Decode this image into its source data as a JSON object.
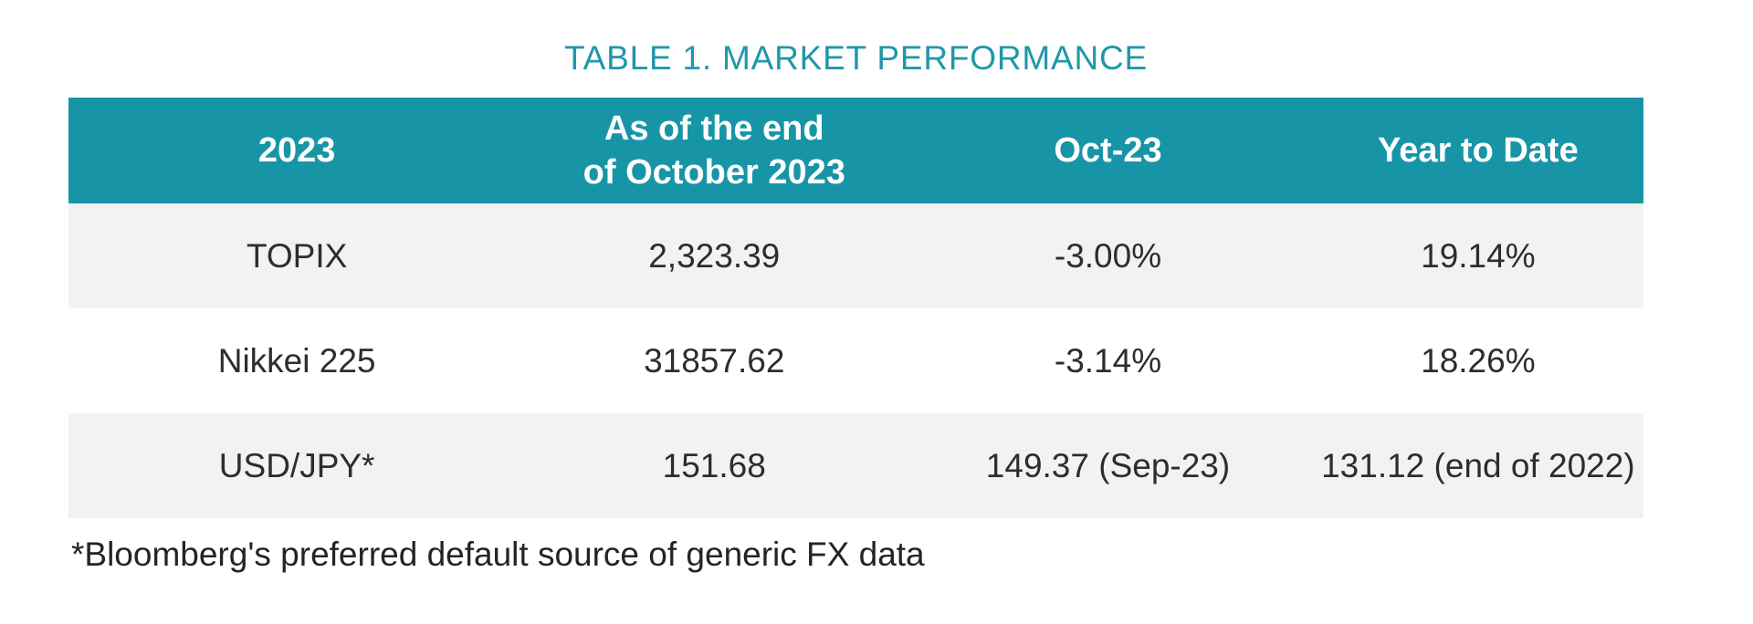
{
  "title": "TABLE 1. MARKET PERFORMANCE",
  "colors": {
    "header_bg": "#1795A7",
    "title_text": "#2097A9",
    "row_alt_bg": "#F2F2F1",
    "body_text": "#2D2C30"
  },
  "chart_data": {
    "type": "table",
    "title": "TABLE 1. MARKET PERFORMANCE",
    "columns": [
      "2023",
      "As of the end of October 2023",
      "Oct-23",
      "Year to Date"
    ],
    "rows": [
      [
        "TOPIX",
        "2,323.39",
        "-3.00%",
        "19.14%"
      ],
      [
        "Nikkei 225",
        "31857.62",
        "-3.14%",
        "18.26%"
      ],
      [
        "USD/JPY*",
        "151.68",
        "149.37 (Sep-23)",
        "131.12 (end of 2022)"
      ]
    ]
  },
  "table": {
    "header": {
      "col1": "2023",
      "col2": "As of the end\nof October 2023",
      "col3": "Oct-23",
      "col4": "Year to Date"
    },
    "rows": [
      {
        "name": "TOPIX",
        "value": "2,323.39",
        "oct": "-3.00%",
        "ytd": "19.14%"
      },
      {
        "name": "Nikkei 225",
        "value": "31857.62",
        "oct": "-3.14%",
        "ytd": "18.26%"
      },
      {
        "name": "USD/JPY*",
        "value": "151.68",
        "oct": "149.37 (Sep-23)",
        "ytd": "131.12 (end of 2022)"
      }
    ]
  },
  "footnote": "*Bloomberg's preferred default source of generic FX data"
}
